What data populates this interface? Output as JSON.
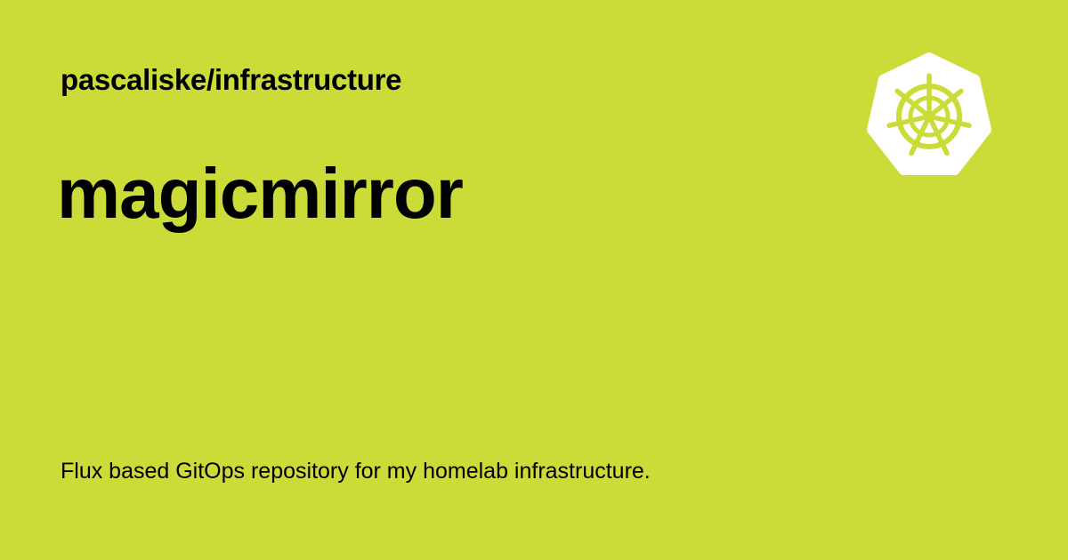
{
  "card": {
    "repo_path": "pascaliske/infrastructure",
    "title": "magicmirror",
    "description": "Flux based GitOps repository for my homelab infrastructure.",
    "logo_icon": "kubernetes-helm-icon"
  },
  "colors": {
    "background": "#cbdc38",
    "text": "#000000",
    "logo_fill": "#ffffff",
    "logo_mark": "#cbdc38"
  }
}
